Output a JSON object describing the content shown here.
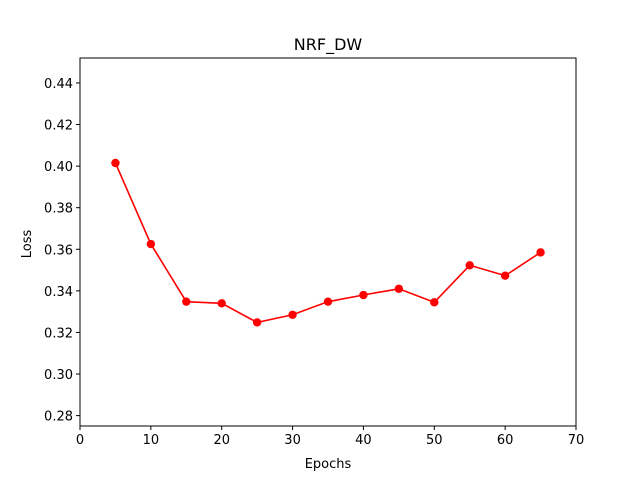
{
  "chart_data": {
    "type": "line",
    "title": "NRF_DW",
    "xlabel": "Epochs",
    "ylabel": "Loss",
    "xlim": [
      0,
      70
    ],
    "ylim": [
      0.275,
      0.452
    ],
    "grid": false,
    "x_ticks": [
      0,
      10,
      20,
      30,
      40,
      50,
      60,
      70
    ],
    "y_ticks": [
      0.28,
      0.3,
      0.32,
      0.34,
      0.36,
      0.38,
      0.4,
      0.42,
      0.44
    ],
    "series": [
      {
        "color": "#ff0000",
        "marker": "circle",
        "x": [
          5,
          10,
          15,
          20,
          25,
          30,
          35,
          40,
          45,
          50,
          55,
          60,
          65
        ],
        "y": [
          0.4015,
          0.3625,
          0.3348,
          0.334,
          0.3248,
          0.3285,
          0.3348,
          0.338,
          0.341,
          0.3345,
          0.3523,
          0.3473,
          0.3585
        ]
      }
    ]
  }
}
